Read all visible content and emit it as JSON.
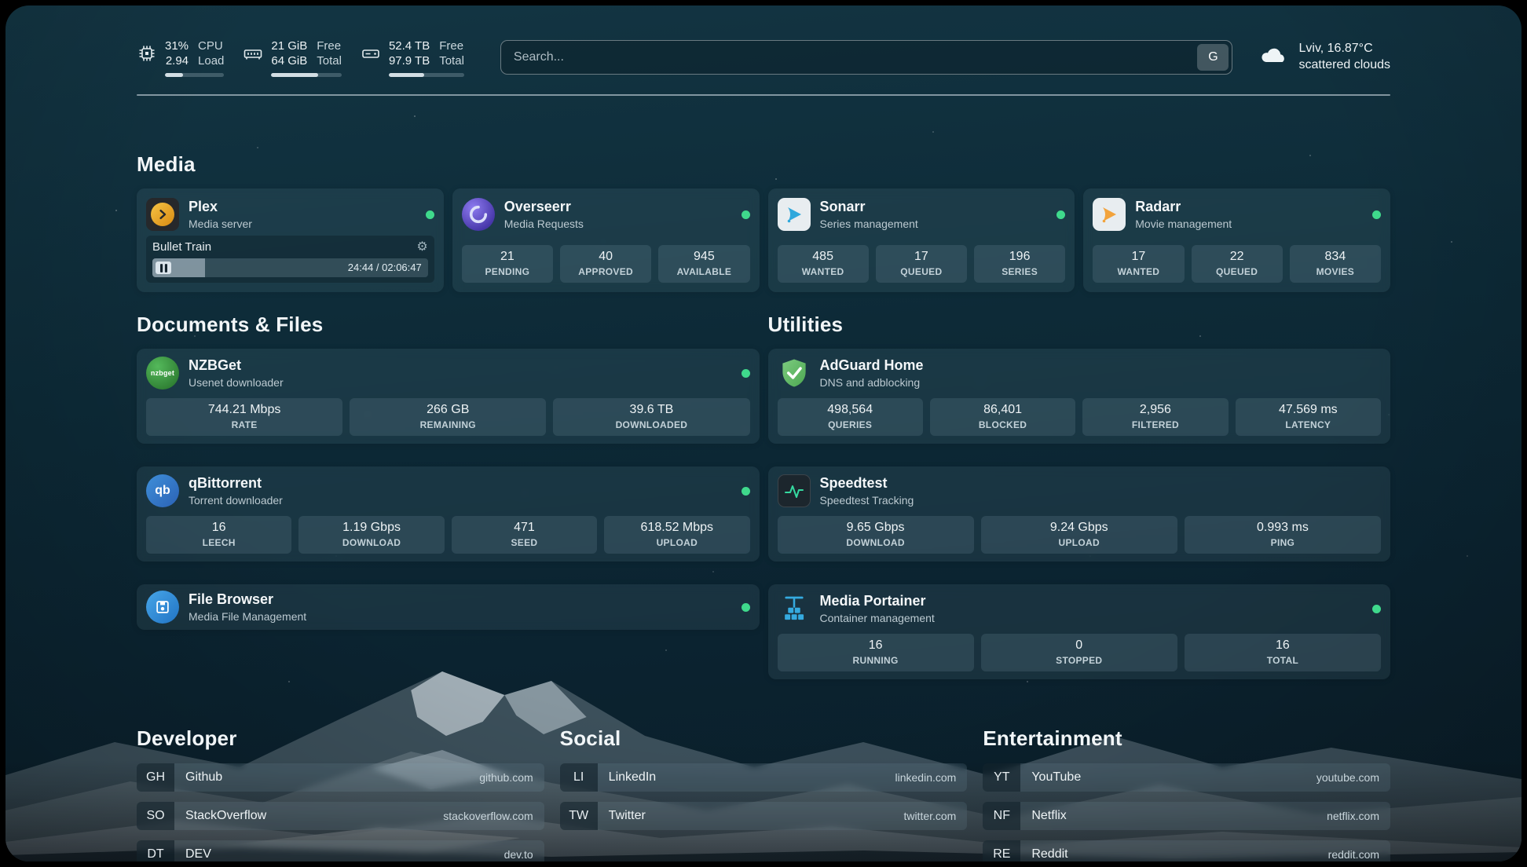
{
  "topbar": {
    "cpu": {
      "icon": "cpu-chip-icon",
      "value_top": "31%",
      "value_bottom": "2.94",
      "label_top": "CPU",
      "label_bottom": "Load",
      "progress_percent": 31
    },
    "memory": {
      "icon": "memory-icon",
      "value_top": "21 GiB",
      "value_bottom": "64 GiB",
      "label_top": "Free",
      "label_bottom": "Total",
      "progress_percent": 67
    },
    "disk": {
      "icon": "disk-icon",
      "value_top": "52.4 TB",
      "value_bottom": "97.9 TB",
      "label_top": "Free",
      "label_bottom": "Total",
      "progress_percent": 47
    },
    "search": {
      "placeholder": "Search...",
      "provider_button": "G"
    },
    "weather": {
      "icon": "cloud-icon",
      "location": "Lviv, 16.87°C",
      "condition": "scattered clouds"
    }
  },
  "colors": {
    "status_online": "#3fd98c",
    "plex_orange": "#e5a00d",
    "overseerr_purple": "#6d5fd6",
    "sonarr_blue": "#2fa8dc",
    "radarr_orange": "#f2a33c",
    "nzbget_green": "#3aa648",
    "qbittorrent_blue": "#2f7bc4",
    "adguard_green": "#5cb661",
    "speedtest_green": "#35d9a0",
    "portainer_blue": "#35aadf"
  },
  "sections": {
    "media": {
      "title": "Media",
      "plex": {
        "name": "Plex",
        "description": "Media server",
        "status": "online",
        "now_playing": {
          "title": "Bullet Train",
          "time": "24:44 / 02:06:47",
          "progress_percent": 19
        }
      },
      "overseerr": {
        "name": "Overseerr",
        "description": "Media Requests",
        "status": "online",
        "stats": [
          {
            "value": "21",
            "label": "PENDING"
          },
          {
            "value": "40",
            "label": "APPROVED"
          },
          {
            "value": "945",
            "label": "AVAILABLE"
          }
        ]
      },
      "sonarr": {
        "name": "Sonarr",
        "description": "Series management",
        "status": "online",
        "stats": [
          {
            "value": "485",
            "label": "WANTED"
          },
          {
            "value": "17",
            "label": "QUEUED"
          },
          {
            "value": "196",
            "label": "SERIES"
          }
        ]
      },
      "radarr": {
        "name": "Radarr",
        "description": "Movie management",
        "status": "online",
        "stats": [
          {
            "value": "17",
            "label": "WANTED"
          },
          {
            "value": "22",
            "label": "QUEUED"
          },
          {
            "value": "834",
            "label": "MOVIES"
          }
        ]
      }
    },
    "documents": {
      "title": "Documents & Files",
      "nzbget": {
        "name": "NZBGet",
        "description": "Usenet downloader",
        "status": "online",
        "icon_text": "nzbget",
        "stats": [
          {
            "value": "744.21 Mbps",
            "label": "RATE"
          },
          {
            "value": "266 GB",
            "label": "REMAINING"
          },
          {
            "value": "39.6 TB",
            "label": "DOWNLOADED"
          }
        ]
      },
      "qbittorrent": {
        "name": "qBittorrent",
        "description": "Torrent downloader",
        "status": "online",
        "icon_text": "qb",
        "stats": [
          {
            "value": "16",
            "label": "LEECH"
          },
          {
            "value": "1.19 Gbps",
            "label": "DOWNLOAD"
          },
          {
            "value": "471",
            "label": "SEED"
          },
          {
            "value": "618.52 Mbps",
            "label": "UPLOAD"
          }
        ]
      },
      "filebrowser": {
        "name": "File Browser",
        "description": "Media File Management",
        "status": "online"
      }
    },
    "utilities": {
      "title": "Utilities",
      "adguard": {
        "name": "AdGuard Home",
        "description": "DNS and adblocking",
        "stats": [
          {
            "value": "498,564",
            "label": "QUERIES"
          },
          {
            "value": "86,401",
            "label": "BLOCKED"
          },
          {
            "value": "2,956",
            "label": "FILTERED"
          },
          {
            "value": "47.569 ms",
            "label": "LATENCY"
          }
        ]
      },
      "speedtest": {
        "name": "Speedtest",
        "description": "Speedtest Tracking",
        "stats": [
          {
            "value": "9.65 Gbps",
            "label": "DOWNLOAD"
          },
          {
            "value": "9.24 Gbps",
            "label": "UPLOAD"
          },
          {
            "value": "0.993 ms",
            "label": "PING"
          }
        ]
      },
      "portainer": {
        "name": "Media Portainer",
        "description": "Container management",
        "status": "online",
        "stats": [
          {
            "value": "16",
            "label": "RUNNING"
          },
          {
            "value": "0",
            "label": "STOPPED"
          },
          {
            "value": "16",
            "label": "TOTAL"
          }
        ]
      }
    }
  },
  "bookmarks": {
    "developer": {
      "title": "Developer",
      "items": [
        {
          "abbr": "GH",
          "name": "Github",
          "url": "github.com"
        },
        {
          "abbr": "SO",
          "name": "StackOverflow",
          "url": "stackoverflow.com"
        },
        {
          "abbr": "DT",
          "name": "DEV",
          "url": "dev.to"
        }
      ]
    },
    "social": {
      "title": "Social",
      "items": [
        {
          "abbr": "LI",
          "name": "LinkedIn",
          "url": "linkedin.com"
        },
        {
          "abbr": "TW",
          "name": "Twitter",
          "url": "twitter.com"
        }
      ]
    },
    "entertainment": {
      "title": "Entertainment",
      "items": [
        {
          "abbr": "YT",
          "name": "YouTube",
          "url": "youtube.com"
        },
        {
          "abbr": "NF",
          "name": "Netflix",
          "url": "netflix.com"
        },
        {
          "abbr": "RE",
          "name": "Reddit",
          "url": "reddit.com"
        }
      ]
    }
  }
}
